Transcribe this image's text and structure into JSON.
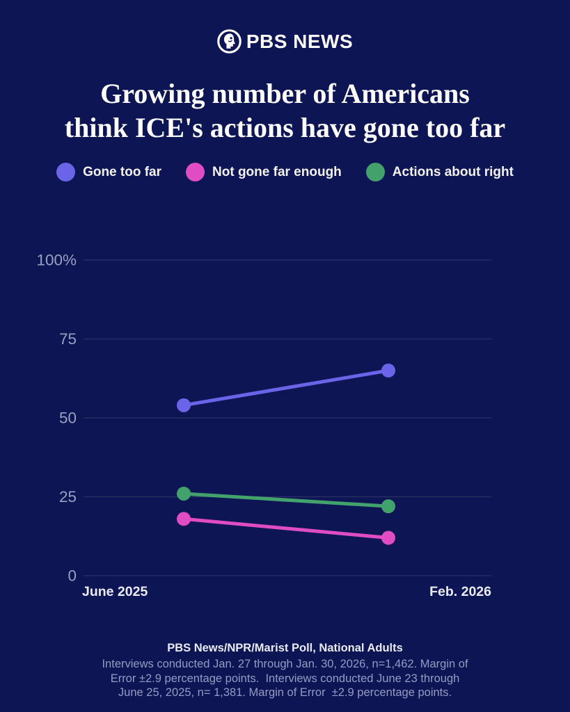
{
  "header": {
    "logo_text": "PBS NEWS"
  },
  "title_lines": [
    "Growing number of Americans",
    "think ICE's actions have gone too far"
  ],
  "chart_data": {
    "type": "line",
    "x": [
      "June 2025",
      "Feb. 2026"
    ],
    "series": [
      {
        "name": "Gone too far",
        "color": "#6c64e8",
        "values": [
          54,
          65
        ]
      },
      {
        "name": "Not gone far enough",
        "color": "#e04cc4",
        "values": [
          18,
          12
        ]
      },
      {
        "name": "Actions about right",
        "color": "#43a26c",
        "values": [
          26,
          22
        ]
      }
    ],
    "y_ticks": [
      {
        "value": 100,
        "label": "100%"
      },
      {
        "value": 75,
        "label": "75"
      },
      {
        "value": 50,
        "label": "50"
      },
      {
        "value": 25,
        "label": "25"
      },
      {
        "value": 0,
        "label": "0"
      }
    ],
    "ylim": [
      0,
      100
    ],
    "grid": true,
    "legend_position": "top",
    "title": "Growing number of Americans think ICE's actions have gone too far"
  },
  "footer": {
    "source": "PBS News/NPR/Marist Poll, National Adults",
    "note_lines": [
      "Interviews conducted Jan. 27 through Jan. 30, 2026, n=1,462. Margin of",
      "Error ±2.9 percentage points.  Interviews conducted June 23 through",
      "June 25, 2025, n= 1,381. Margin of Error  ±2.9 percentage points."
    ]
  },
  "colors": {
    "background": "#0d1555",
    "grid_line": "#2b3365",
    "y_tick_label": "#9aa0bf",
    "x_tick_label": "#e9eaf2"
  }
}
